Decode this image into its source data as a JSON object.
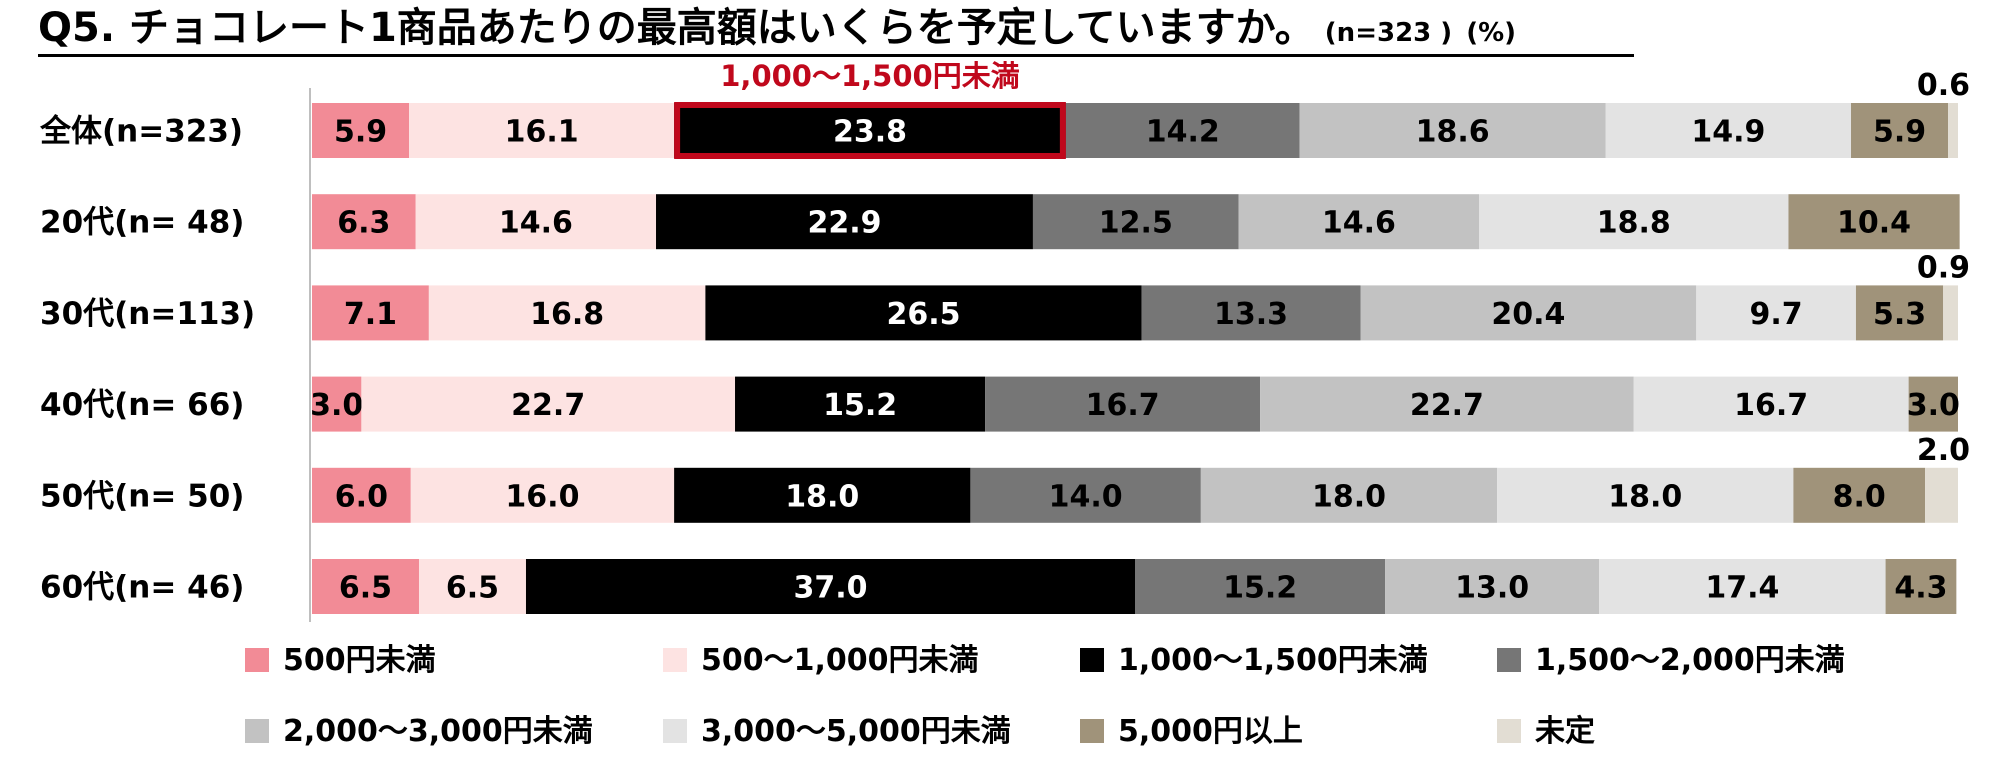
{
  "title": {
    "main": "Q5. チョコレート1商品あたりの最高額はいくらを予定していますか。",
    "sample": "(n=323 )",
    "unit": "(%)"
  },
  "highlight_label": "1,000～1,500円未満",
  "chart_data": {
    "type": "bar",
    "orientation": "horizontal",
    "stacked": true,
    "percent": true,
    "categories": [
      "全体(n=323)",
      "20代(n=  48)",
      "30代(n=113)",
      "40代(n=  66)",
      "50代(n=  50)",
      "60代(n=  46)"
    ],
    "series": [
      {
        "name": "500円未満",
        "color": "#f28b96",
        "values": [
          5.9,
          6.3,
          7.1,
          3.0,
          6.0,
          6.5
        ]
      },
      {
        "name": "500～1,000円未満",
        "color": "#fde3e2",
        "values": [
          16.1,
          14.6,
          16.8,
          22.7,
          16.0,
          6.5
        ]
      },
      {
        "name": "1,000～1,500円未満",
        "color": "#000000",
        "values": [
          23.8,
          22.9,
          26.5,
          15.2,
          18.0,
          37.0
        ]
      },
      {
        "name": "1,500～2,000円未満",
        "color": "#767676",
        "values": [
          14.2,
          12.5,
          13.3,
          16.7,
          14.0,
          15.2
        ]
      },
      {
        "name": "2,000～3,000円未満",
        "color": "#c2c2c2",
        "values": [
          18.6,
          14.6,
          20.4,
          22.7,
          18.0,
          13.0
        ]
      },
      {
        "name": "3,000～5,000円未満",
        "color": "#e3e3e3",
        "values": [
          14.9,
          18.8,
          9.7,
          16.7,
          18.0,
          17.4
        ]
      },
      {
        "name": "5,000円以上",
        "color": "#a0937a",
        "values": [
          5.9,
          10.4,
          5.3,
          3.0,
          8.0,
          4.3
        ]
      },
      {
        "name": "未定",
        "color": "#e2ddd3",
        "values": [
          0.6,
          0.0,
          0.9,
          0.0,
          2.0,
          0.0
        ]
      }
    ],
    "xlim": [
      0,
      100
    ],
    "grid": false,
    "legend_position": "bottom",
    "highlight": {
      "series": "1,000～1,500円未満",
      "category": "全体(n=323)",
      "color": "#c0081c"
    }
  }
}
